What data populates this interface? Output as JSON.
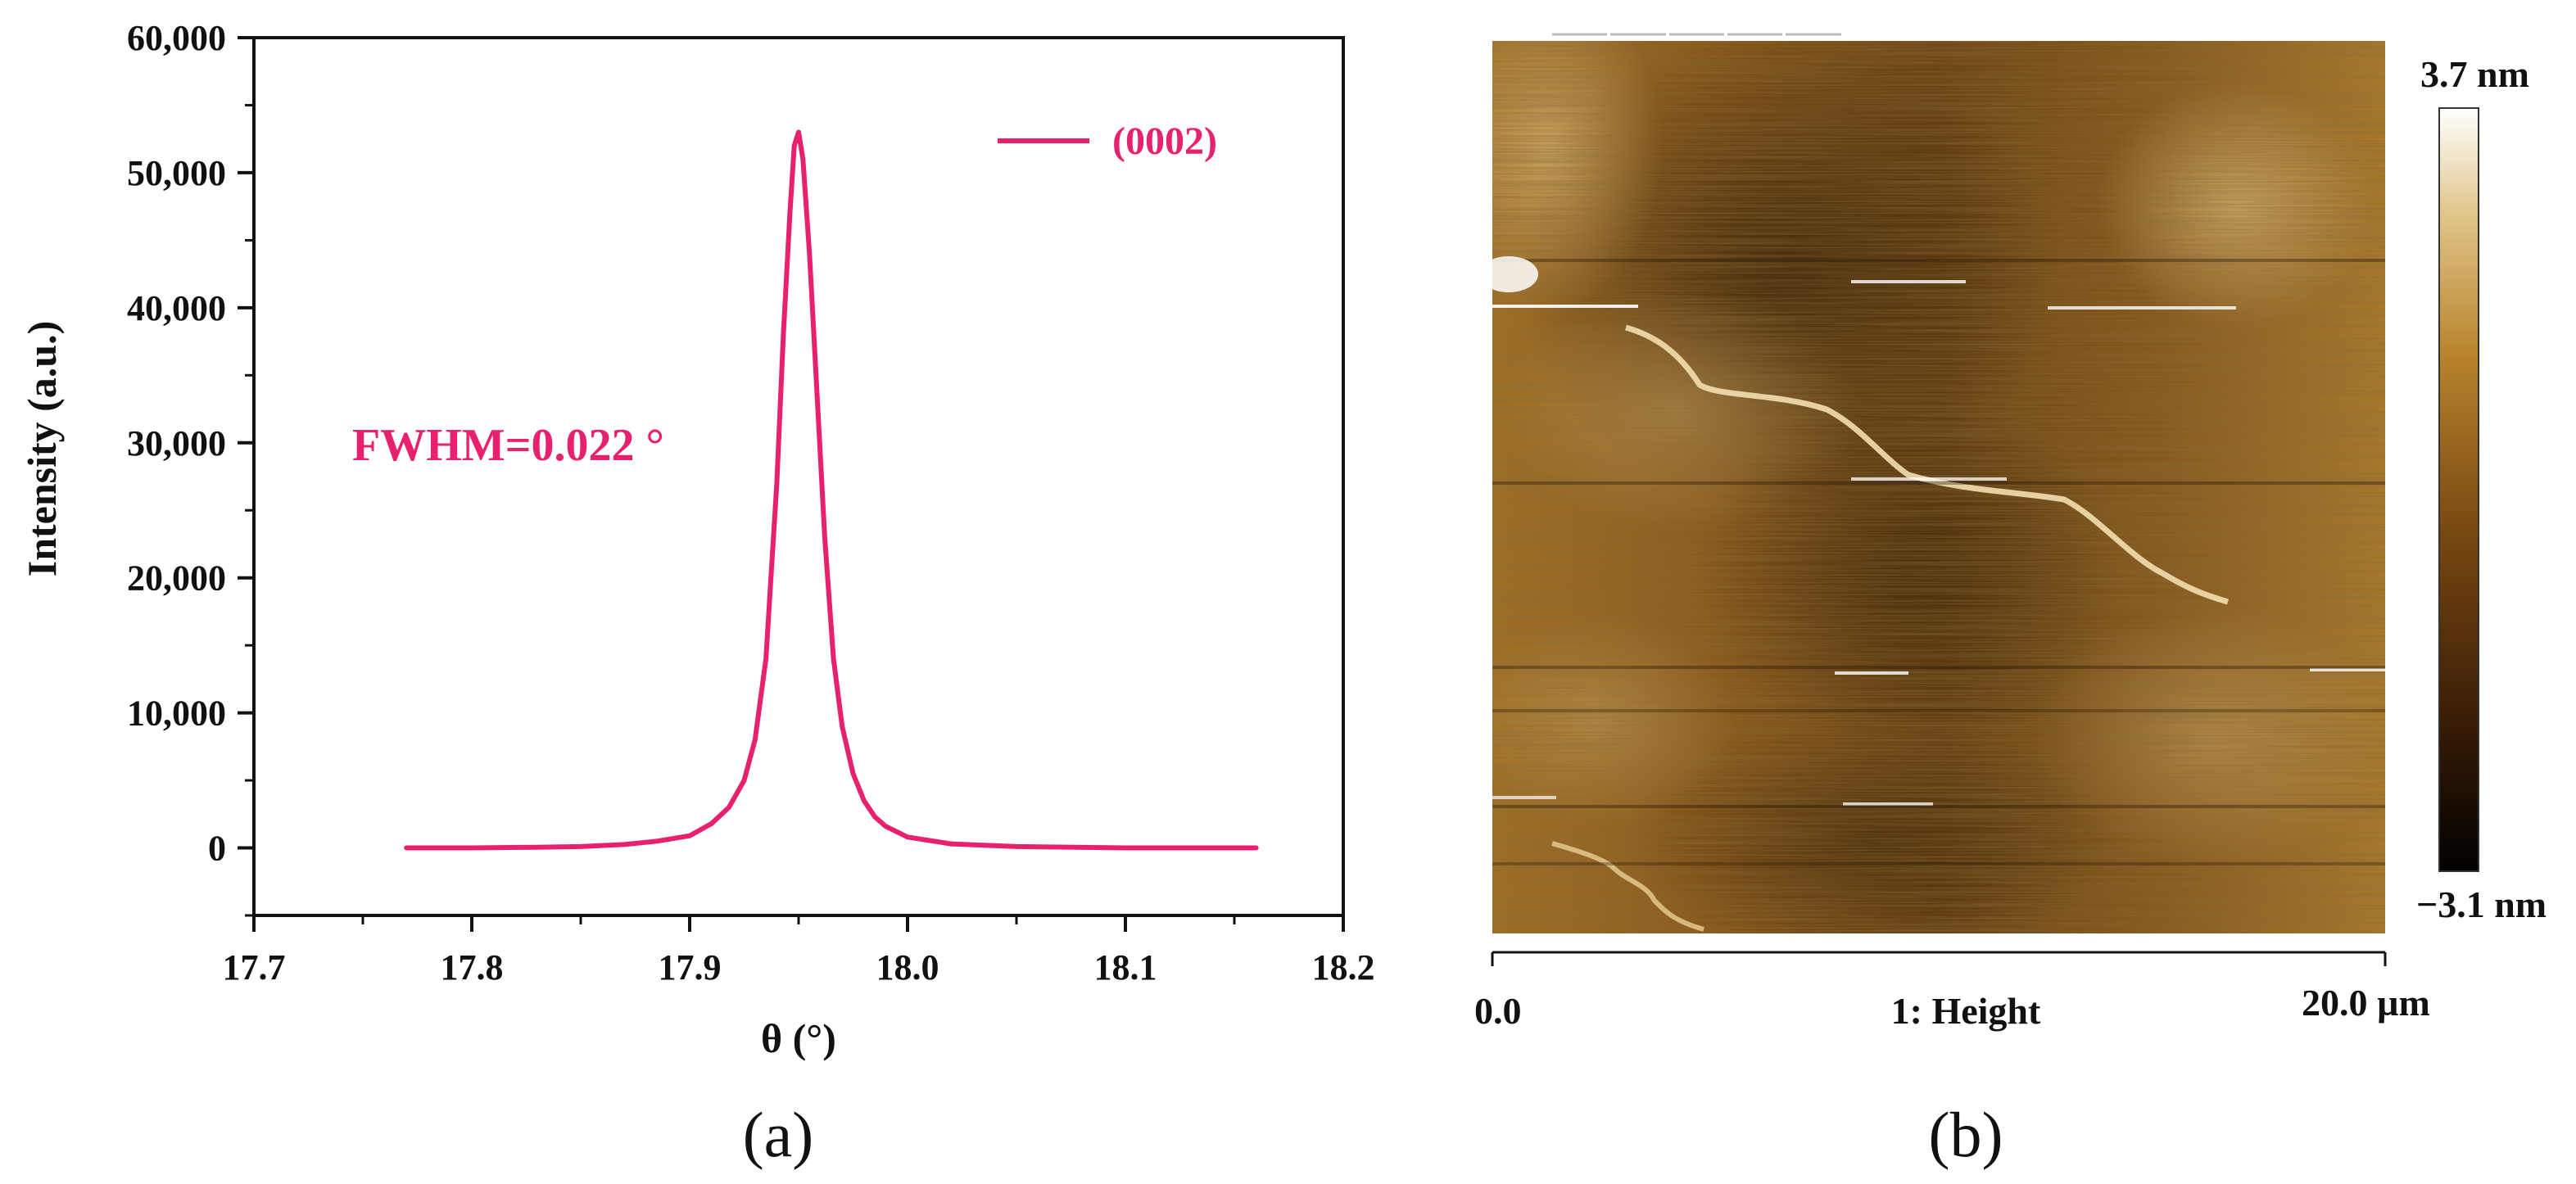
{
  "chart_data": [
    {
      "type": "line",
      "panel_label": "(a)",
      "title": "",
      "xlabel": "θ (°)",
      "ylabel": "Intensity (a.u.)",
      "xlim": [
        17.7,
        18.2
      ],
      "ylim": [
        -5000,
        60000
      ],
      "xticks": [
        17.7,
        17.8,
        17.9,
        18.0,
        18.1,
        18.2
      ],
      "xtick_labels": [
        "17.7",
        "17.8",
        "17.9",
        "18.0",
        "18.1",
        "18.2"
      ],
      "yticks": [
        0,
        10000,
        20000,
        30000,
        40000,
        50000,
        60000
      ],
      "ytick_labels": [
        "0",
        "10,000",
        "20,000",
        "30,000",
        "40,000",
        "50,000",
        "60,000"
      ],
      "grid": false,
      "legend_position": "top-right",
      "annotation": "FWHM=0.022 °",
      "series": [
        {
          "name": "(0002)",
          "color": "#e8216f",
          "x": [
            17.77,
            17.8,
            17.83,
            17.85,
            17.87,
            17.885,
            17.9,
            17.91,
            17.918,
            17.925,
            17.93,
            17.935,
            17.94,
            17.943,
            17.946,
            17.948,
            17.95,
            17.952,
            17.955,
            17.958,
            17.962,
            17.966,
            17.97,
            17.975,
            17.98,
            17.985,
            17.99,
            18.0,
            18.02,
            18.05,
            18.1,
            18.16
          ],
          "y": [
            0,
            0,
            50,
            100,
            250,
            500,
            900,
            1800,
            3000,
            5000,
            8000,
            14000,
            27000,
            38000,
            47000,
            52000,
            53000,
            51000,
            44000,
            35000,
            23000,
            14000,
            9000,
            5500,
            3500,
            2300,
            1600,
            800,
            300,
            100,
            0,
            0
          ]
        }
      ]
    },
    {
      "type": "heatmap",
      "panel_label": "(b)",
      "title": "1: Height",
      "x_range_labels": [
        "0.0",
        "20.0 µm"
      ],
      "colorbar_max_label": "3.7 nm",
      "colorbar_min_label": "−3.1 nm",
      "colorbar_range_nm": [
        -3.1,
        3.7
      ],
      "colormap": [
        "#000000",
        "#3a1d06",
        "#7a4a12",
        "#b9852e",
        "#e0c58a",
        "#ffffff"
      ]
    }
  ]
}
